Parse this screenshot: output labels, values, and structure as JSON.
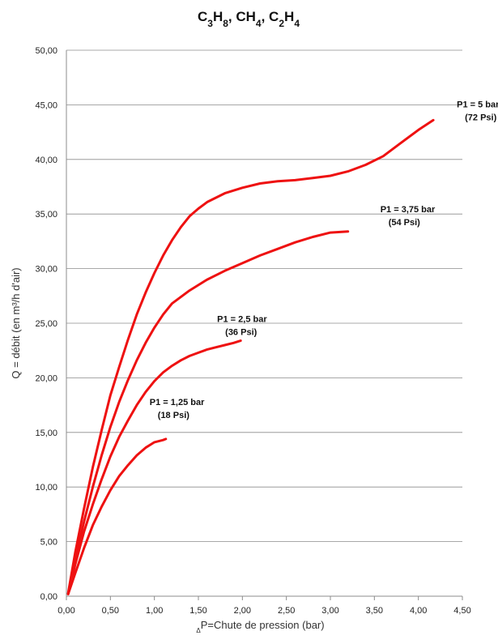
{
  "chart_data": {
    "type": "line",
    "title": {
      "parts": [
        {
          "text": "C",
          "sub": "3"
        },
        {
          "text": "H",
          "sub": "8"
        },
        {
          "text": ", CH",
          "sub": "4"
        },
        {
          "text": ", C",
          "sub": "2"
        },
        {
          "text": "H",
          "sub": "4"
        }
      ]
    },
    "xlabel": {
      "sub": "Δ",
      "main": "P=Chute de pression (bar)"
    },
    "ylabel": "Q = débit (en m³/h d'air)",
    "xlim": [
      0,
      4.5
    ],
    "ylim": [
      0,
      50
    ],
    "x_ticks": [
      "0,00",
      "0,50",
      "1,00",
      "1,50",
      "2,00",
      "2,50",
      "3,00",
      "3,50",
      "4,00",
      "4,50"
    ],
    "x_tick_values": [
      0,
      0.5,
      1,
      1.5,
      2,
      2.5,
      3,
      3.5,
      4,
      4.5
    ],
    "y_ticks": [
      "0,00",
      "5,00",
      "10,00",
      "15,00",
      "20,00",
      "25,00",
      "30,00",
      "35,00",
      "40,00",
      "45,00",
      "50,00"
    ],
    "y_tick_values": [
      0,
      5,
      10,
      15,
      20,
      25,
      30,
      35,
      40,
      45,
      50
    ],
    "grid": "horizontal",
    "line_color": "#ee1111",
    "series": [
      {
        "label_line1": "P1 = 5 bar",
        "label_line2": "(72 Psi)",
        "x": [
          0.02,
          0.1,
          0.2,
          0.3,
          0.4,
          0.5,
          0.6,
          0.7,
          0.8,
          0.9,
          1.0,
          1.1,
          1.2,
          1.3,
          1.4,
          1.5,
          1.6,
          1.8,
          2.0,
          2.2,
          2.4,
          2.6,
          2.8,
          3.0,
          3.2,
          3.4,
          3.6,
          3.8,
          4.0,
          4.17
        ],
        "y": [
          0.3,
          4.0,
          8.0,
          11.8,
          15.2,
          18.4,
          21.0,
          23.5,
          25.8,
          27.8,
          29.6,
          31.2,
          32.6,
          33.8,
          34.8,
          35.5,
          36.1,
          36.9,
          37.4,
          37.8,
          38.0,
          38.1,
          38.3,
          38.5,
          38.9,
          39.5,
          40.3,
          41.5,
          42.7,
          43.6
        ]
      },
      {
        "label_line1": "P1 = 3,75 bar",
        "label_line2": "(54 Psi)",
        "x": [
          0.02,
          0.1,
          0.2,
          0.3,
          0.4,
          0.5,
          0.6,
          0.7,
          0.8,
          0.9,
          1.0,
          1.1,
          1.2,
          1.4,
          1.6,
          1.8,
          2.0,
          2.2,
          2.4,
          2.6,
          2.8,
          3.0,
          3.2
        ],
        "y": [
          0.2,
          3.4,
          6.8,
          10.0,
          12.9,
          15.5,
          17.8,
          19.8,
          21.6,
          23.2,
          24.6,
          25.8,
          26.8,
          28.0,
          29.0,
          29.8,
          30.5,
          31.2,
          31.8,
          32.4,
          32.9,
          33.3,
          33.4
        ]
      },
      {
        "label_line1": "P1 = 2,5 bar",
        "label_line2": "(36 Psi)",
        "x": [
          0.02,
          0.1,
          0.2,
          0.3,
          0.4,
          0.5,
          0.6,
          0.7,
          0.8,
          0.9,
          1.0,
          1.1,
          1.2,
          1.3,
          1.4,
          1.5,
          1.6,
          1.7,
          1.8,
          1.9,
          1.98
        ],
        "y": [
          0.2,
          2.9,
          5.9,
          8.4,
          10.7,
          12.8,
          14.6,
          16.1,
          17.5,
          18.7,
          19.7,
          20.5,
          21.1,
          21.6,
          22.0,
          22.3,
          22.6,
          22.8,
          23.0,
          23.2,
          23.4
        ]
      },
      {
        "label_line1": "P1 = 1,25 bar",
        "label_line2": "(18 Psi)",
        "x": [
          0.02,
          0.1,
          0.2,
          0.3,
          0.4,
          0.5,
          0.6,
          0.7,
          0.8,
          0.9,
          1.0,
          1.1,
          1.13
        ],
        "y": [
          0.2,
          2.1,
          4.4,
          6.5,
          8.2,
          9.7,
          11.0,
          12.0,
          12.9,
          13.6,
          14.1,
          14.3,
          14.4
        ]
      }
    ]
  }
}
